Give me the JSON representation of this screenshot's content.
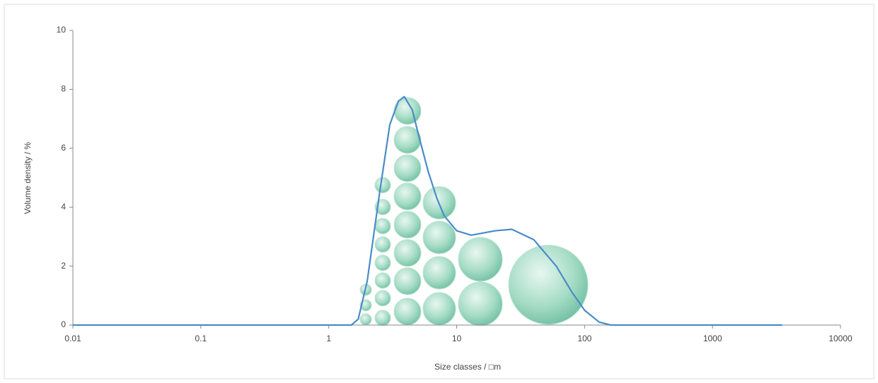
{
  "chart_data": {
    "type": "line",
    "x_label": "Size classes / □m",
    "y_label": "Volume density / %",
    "x": [
      0.01,
      0.1,
      1,
      1.5,
      1.7,
      2,
      2.5,
      3,
      3.5,
      3.9,
      4.5,
      5,
      6,
      7,
      8,
      10,
      13,
      20,
      27,
      40,
      60,
      80,
      100,
      130,
      160,
      1000,
      3500
    ],
    "values": [
      0,
      0,
      0,
      0,
      0.2,
      1.5,
      4.5,
      6.8,
      7.6,
      7.75,
      7.3,
      6.5,
      5.2,
      4.3,
      3.7,
      3.2,
      3.05,
      3.2,
      3.25,
      2.9,
      2.0,
      1.1,
      0.5,
      0.1,
      0,
      0,
      0
    ],
    "color": "#4a8cc8",
    "xscale": "log",
    "xlim": [
      0.01,
      10000
    ],
    "xticks": [
      0.01,
      0.1,
      1,
      10,
      100,
      1000,
      10000
    ],
    "ylim": [
      0,
      10
    ],
    "yticks": [
      0,
      2,
      4,
      6,
      8,
      10
    ],
    "grid": false
  }
}
